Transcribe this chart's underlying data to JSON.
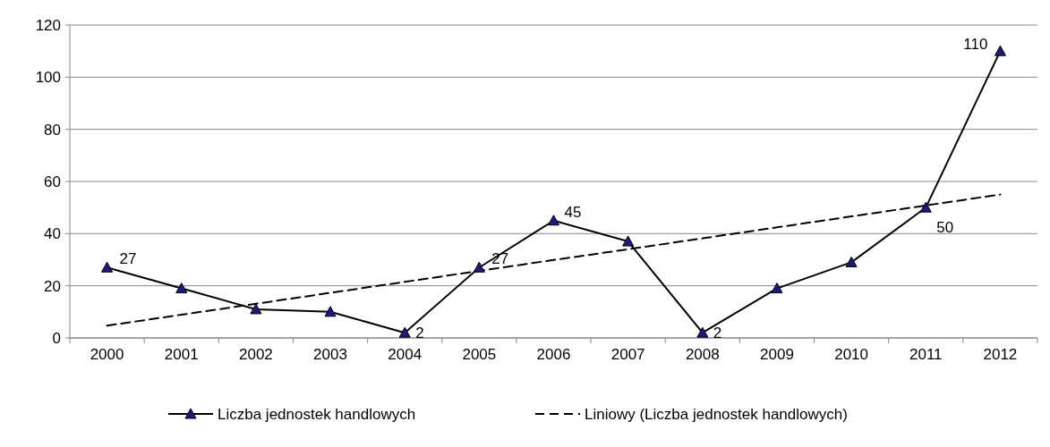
{
  "chart_data": {
    "type": "line",
    "categories": [
      "2000",
      "2001",
      "2002",
      "2003",
      "2004",
      "2005",
      "2006",
      "2007",
      "2008",
      "2009",
      "2010",
      "2011",
      "2012"
    ],
    "ylim": [
      0,
      120
    ],
    "yticks": [
      0,
      20,
      40,
      60,
      80,
      100,
      120
    ],
    "grid": "y",
    "legend": "bottom",
    "series": [
      {
        "name": "Liczba jednostek handlowych",
        "color": "#000000",
        "marker": "triangle",
        "line_style": "solid",
        "values": [
          27,
          19,
          11,
          10,
          2,
          27,
          45,
          37,
          2,
          19,
          29,
          50,
          110
        ],
        "value_labels": [
          "27",
          null,
          null,
          null,
          "2",
          "27",
          "45",
          null,
          "2",
          null,
          null,
          "50",
          "110"
        ]
      },
      {
        "name": "Liniowy (Liczba jednostek handlowych)",
        "color": "#000000",
        "marker": "none",
        "line_style": "dashed",
        "values": [
          4.7,
          8.9,
          13.1,
          17.3,
          21.5,
          25.7,
          29.9,
          34.0,
          38.2,
          42.4,
          46.6,
          50.8,
          55.0
        ]
      }
    ]
  }
}
